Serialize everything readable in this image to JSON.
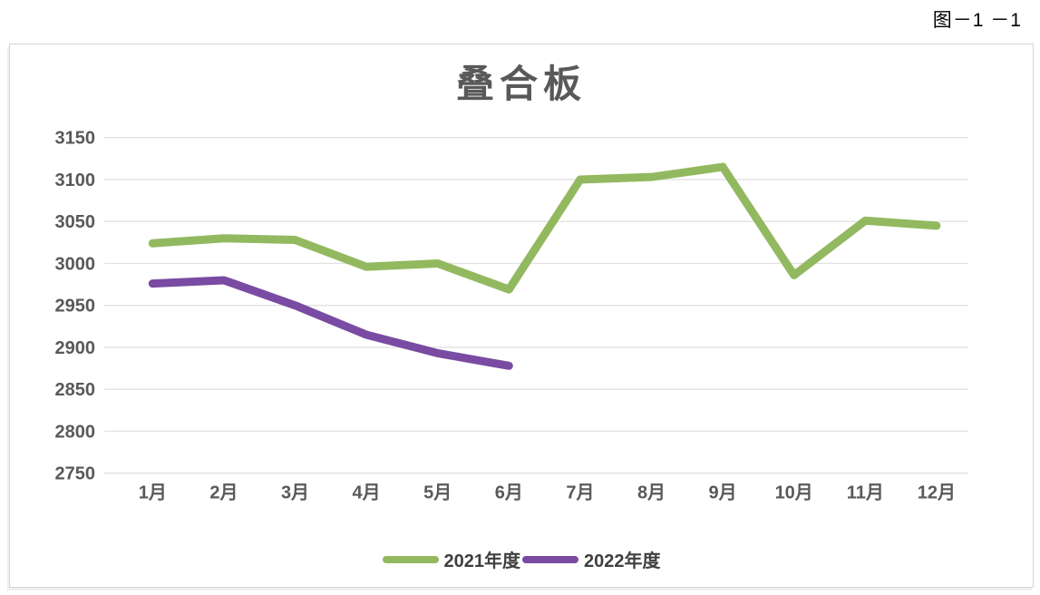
{
  "figure_label": "图－1 －1",
  "chart_data": {
    "type": "line",
    "title": "叠合板",
    "categories": [
      "1月",
      "2月",
      "3月",
      "4月",
      "5月",
      "6月",
      "7月",
      "8月",
      "9月",
      "10月",
      "11月",
      "12月"
    ],
    "series": [
      {
        "name": "2021年度",
        "color": "#92B95F",
        "values": [
          3024,
          3030,
          3028,
          2996,
          3000,
          2969,
          3100,
          3103,
          3115,
          2986,
          3051,
          3045
        ]
      },
      {
        "name": "2022年度",
        "color": "#7A4BA2",
        "values": [
          2976,
          2980,
          2950,
          2915,
          2893,
          2878,
          null,
          null,
          null,
          null,
          null,
          null
        ]
      }
    ],
    "ylim": [
      2750,
      3150
    ],
    "ytick_step": 50,
    "grid": true,
    "legend_position": "bottom",
    "colors": {
      "grid_line": "#E2E2E2",
      "axis_text": "#595959",
      "title_text": "#595959",
      "panel_border": "#D5D5D5"
    }
  }
}
